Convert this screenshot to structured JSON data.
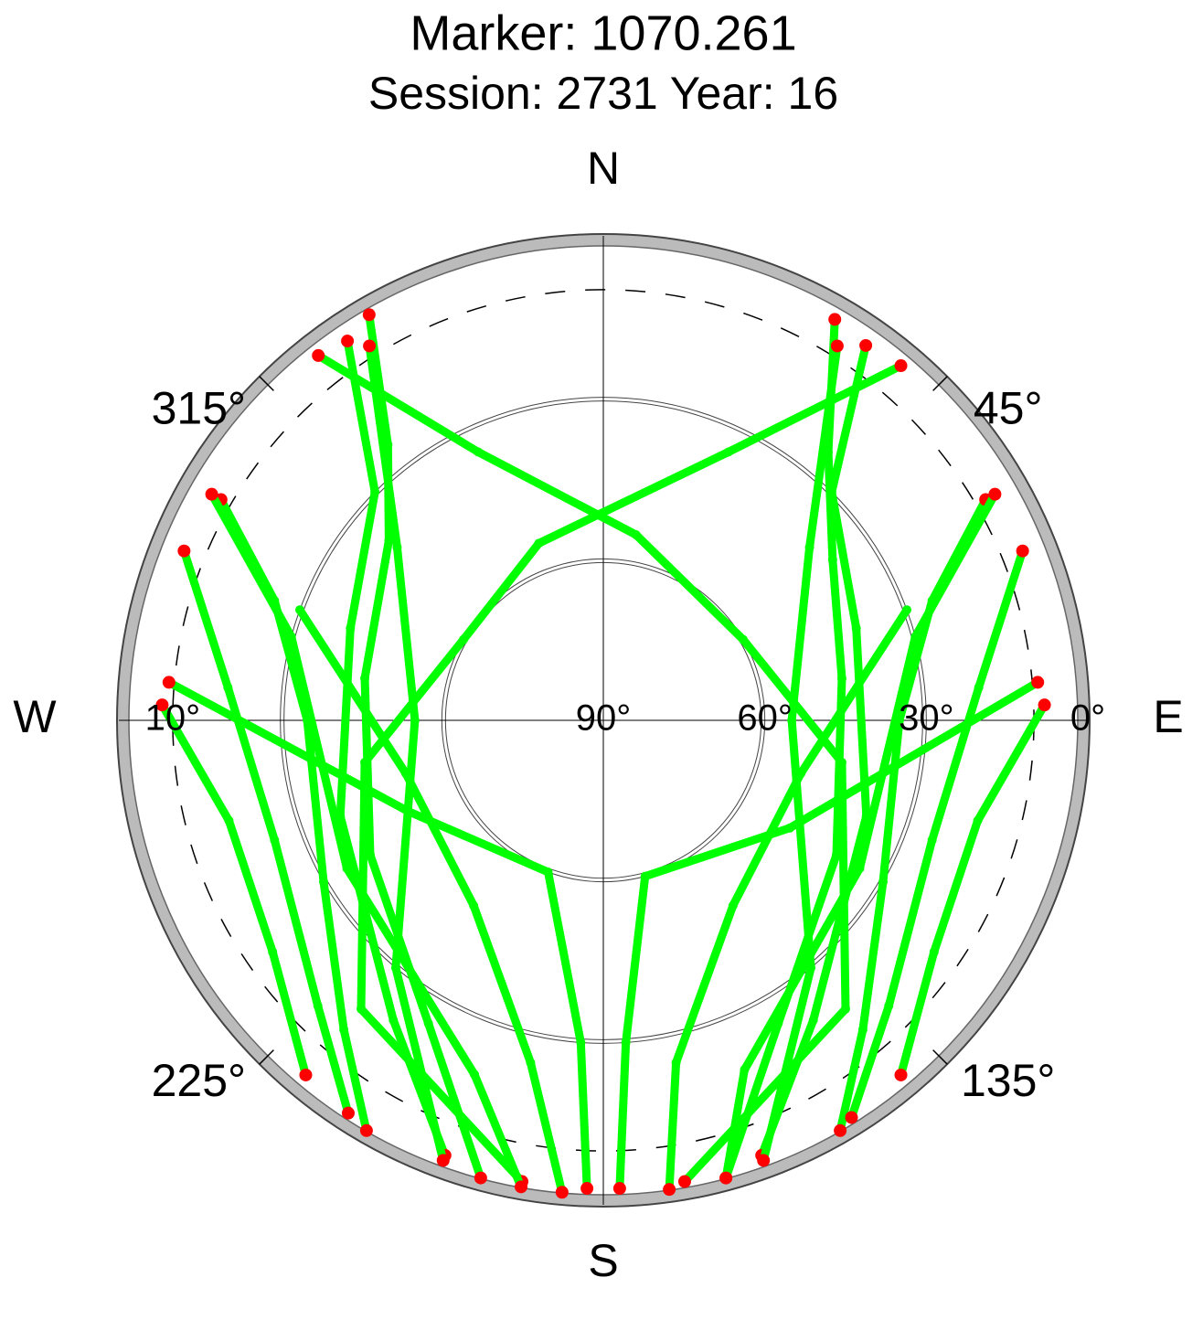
{
  "chart_data": {
    "type": "polar-track",
    "title": "Marker: 1070.261",
    "subtitle": "Session: 2731 Year: 16",
    "rlim": [
      90,
      0
    ],
    "rticks": [
      {
        "value": 90,
        "label": "90°"
      },
      {
        "value": 60,
        "label": "60°"
      },
      {
        "value": 30,
        "label": "30°"
      },
      {
        "value": 0,
        "label": "0°"
      }
    ],
    "cutoff": {
      "value": 10,
      "label": "10°"
    },
    "aticks": [
      {
        "value": 0,
        "label": "N"
      },
      {
        "value": 45,
        "label": "45°"
      },
      {
        "value": 90,
        "label": "E"
      },
      {
        "value": 135,
        "label": "135°"
      },
      {
        "value": 180,
        "label": "S"
      },
      {
        "value": 225,
        "label": "225°"
      },
      {
        "value": 270,
        "label": "W"
      },
      {
        "value": 315,
        "label": "315°"
      }
    ],
    "color": "#00ff00",
    "below_cutoff_color": "#ff0000",
    "series": [
      {
        "az": [
          330,
          322,
          310,
          280,
          240,
          210,
          195
        ],
        "el": [
          3,
          25,
          38,
          45,
          40,
          25,
          2
        ]
      },
      {
        "az": [
          326,
          315,
          290,
          250,
          215,
          200
        ],
        "el": [
          5,
          30,
          40,
          38,
          22,
          4
        ]
      },
      {
        "az": [
          300,
          290,
          270,
          240,
          220,
          210
        ],
        "el": [
          8,
          25,
          35,
          30,
          15,
          2
        ]
      },
      {
        "az": [
          292,
          275,
          250,
          225,
          213
        ],
        "el": [
          6,
          20,
          25,
          15,
          3
        ]
      },
      {
        "az": [
          272,
          255,
          235,
          220
        ],
        "el": [
          8,
          18,
          15,
          4
        ]
      },
      {
        "az": [
          30,
          40,
          55,
          80,
          120,
          150,
          165
        ],
        "el": [
          4,
          25,
          38,
          45,
          40,
          25,
          2
        ]
      },
      {
        "az": [
          35,
          45,
          70,
          110,
          145,
          160
        ],
        "el": [
          5,
          30,
          40,
          38,
          22,
          4
        ]
      },
      {
        "az": [
          60,
          70,
          90,
          120,
          140,
          150
        ],
        "el": [
          8,
          25,
          35,
          30,
          15,
          2
        ]
      },
      {
        "az": [
          68,
          85,
          110,
          135,
          148
        ],
        "el": [
          6,
          20,
          25,
          15,
          3
        ]
      },
      {
        "az": [
          88,
          105,
          125,
          140
        ],
        "el": [
          8,
          18,
          15,
          4
        ]
      },
      {
        "az": [
          322,
          335,
          10,
          60,
          100,
          140,
          170
        ],
        "el": [
          4,
          35,
          55,
          60,
          45,
          20,
          3
        ]
      },
      {
        "az": [
          40,
          25,
          340,
          300,
          260,
          220,
          190
        ],
        "el": [
          4,
          35,
          55,
          60,
          45,
          20,
          3
        ]
      },
      {
        "az": [
          200,
          220,
          270,
          310,
          328
        ],
        "el": [
          3,
          30,
          55,
          40,
          8
        ]
      },
      {
        "az": [
          160,
          140,
          90,
          50,
          32
        ],
        "el": [
          3,
          30,
          55,
          40,
          8
        ]
      },
      {
        "az": [
          185,
          192,
          215,
          255,
          290
        ],
        "el": [
          2,
          25,
          48,
          52,
          30
        ]
      },
      {
        "az": [
          172,
          168,
          145,
          105,
          70
        ],
        "el": [
          2,
          25,
          48,
          52,
          30
        ]
      },
      {
        "az": [
          190,
          200,
          240,
          285,
          300
        ],
        "el": [
          2,
          20,
          35,
          30,
          6
        ]
      },
      {
        "az": [
          165,
          158,
          120,
          75,
          60
        ],
        "el": [
          2,
          20,
          35,
          30,
          6
        ]
      },
      {
        "az": [
          178,
          176,
          165,
          120,
          85
        ],
        "el": [
          3,
          30,
          60,
          50,
          9
        ]
      },
      {
        "az": [
          182,
          184,
          200,
          245,
          275
        ],
        "el": [
          3,
          30,
          60,
          50,
          9
        ]
      }
    ]
  }
}
